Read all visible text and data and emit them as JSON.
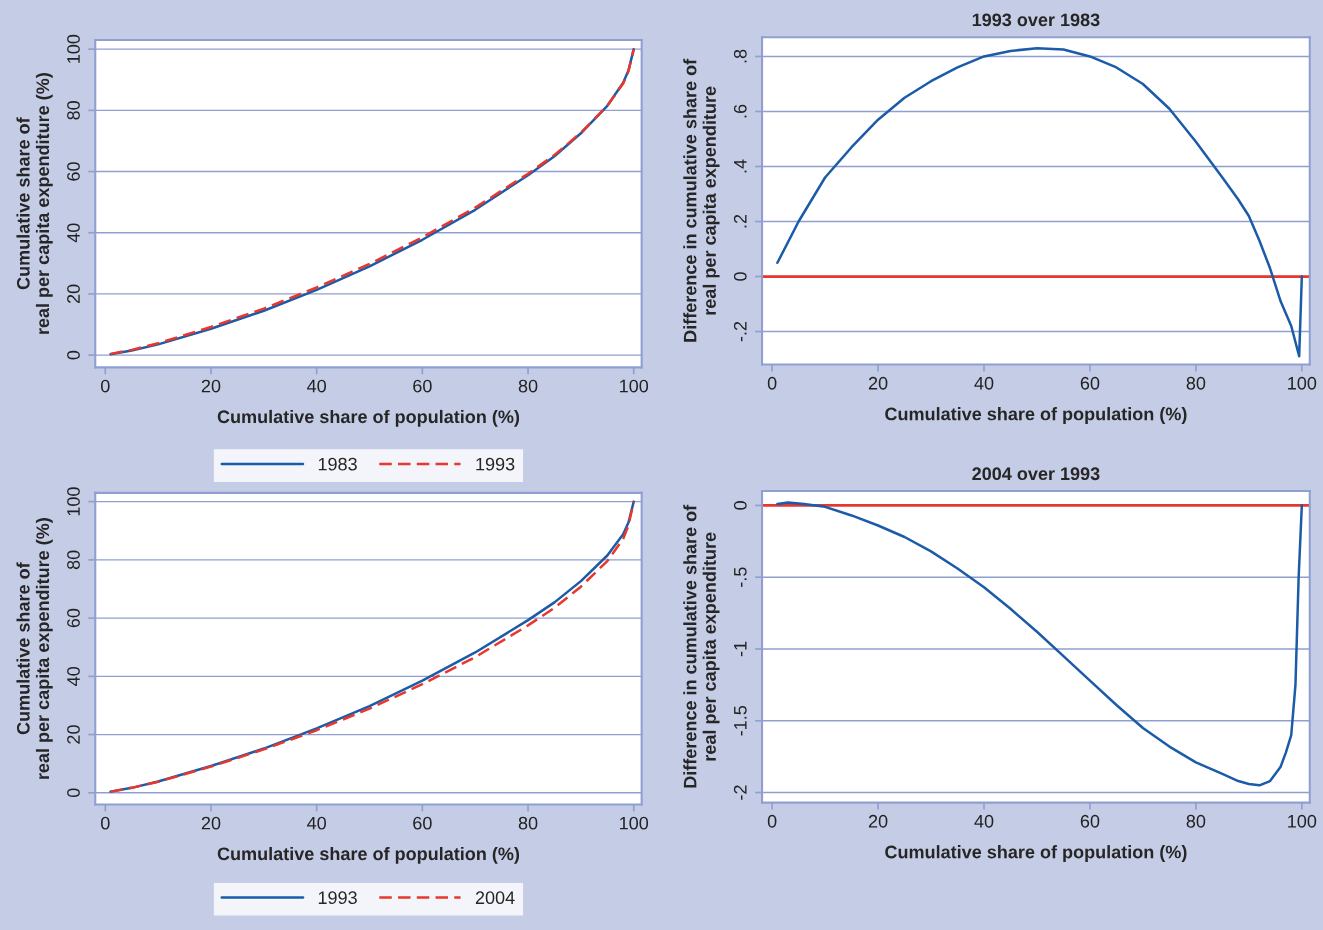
{
  "chart_data": [
    {
      "type": "line",
      "xlabel": "Cumulative share of population (%)",
      "ylabel": "Cumulative share of\nreal per capita expenditure (%)",
      "xlim": [
        -1.9,
        101.5
      ],
      "ylim": [
        -4,
        103
      ],
      "xticks": [
        0,
        20,
        40,
        60,
        80,
        100
      ],
      "yticks": [
        0,
        20,
        40,
        60,
        80,
        100
      ],
      "grid": "y",
      "legend": "bottom",
      "series": [
        {
          "name": "1983",
          "color": "#1b5ba8",
          "line_style": "solid",
          "x": [
            1,
            5,
            10,
            20,
            30,
            40,
            50,
            60,
            70,
            80,
            85,
            90,
            95,
            98,
            99,
            100
          ],
          "values": [
            0.3,
            1.5,
            3.5,
            8.6,
            14.5,
            21.3,
            29,
            37.7,
            47.5,
            58.8,
            65,
            72.5,
            81.5,
            89,
            93,
            100
          ]
        },
        {
          "name": "1993",
          "color": "#e8372c",
          "line_style": "dashed",
          "x": [
            1,
            5,
            10,
            20,
            30,
            40,
            50,
            60,
            70,
            80,
            85,
            90,
            95,
            98,
            99,
            100
          ],
          "values": [
            0.4,
            1.7,
            3.9,
            9.2,
            15.2,
            22.1,
            29.8,
            38.5,
            48.2,
            59.3,
            65.4,
            72.7,
            81.5,
            88.8,
            92.8,
            100
          ]
        }
      ]
    },
    {
      "type": "line",
      "title": "1993 over 1983",
      "xlabel": "Cumulative share of population (%)",
      "ylabel": "Difference in cumulative share of\nreal per capita expenditure",
      "xlim": [
        -1.9,
        101.5
      ],
      "ylim": [
        -0.32,
        0.87
      ],
      "xticks": [
        0,
        20,
        40,
        60,
        80,
        100
      ],
      "yticks": [
        {
          "value": -0.2,
          "label": "-.2"
        },
        0,
        {
          "value": 0.2,
          "label": ".2"
        },
        {
          "value": 0.4,
          "label": ".4"
        },
        {
          "value": 0.6,
          "label": ".6"
        },
        {
          "value": 0.8,
          "label": ".8"
        }
      ],
      "grid": "y",
      "ref_lines": [
        {
          "axis": "y",
          "value": 0,
          "color": "#e8372c"
        }
      ],
      "series": [
        {
          "color": "#1b5ba8",
          "line_style": "solid",
          "x": [
            1,
            5,
            10,
            15,
            20,
            25,
            30,
            35,
            40,
            45,
            50,
            55,
            60,
            65,
            70,
            75,
            80,
            85,
            88,
            90,
            92,
            94,
            96,
            98,
            99.5,
            100
          ],
          "values": [
            0.05,
            0.2,
            0.36,
            0.47,
            0.57,
            0.65,
            0.71,
            0.76,
            0.8,
            0.82,
            0.83,
            0.825,
            0.8,
            0.76,
            0.7,
            0.61,
            0.49,
            0.36,
            0.28,
            0.22,
            0.13,
            0.03,
            -0.09,
            -0.18,
            -0.29,
            0
          ]
        }
      ]
    },
    {
      "type": "line",
      "xlabel": "Cumulative share of population (%)",
      "ylabel": "Cumulative share of\nreal per capita expenditure (%)",
      "xlim": [
        -1.9,
        101.5
      ],
      "ylim": [
        -4,
        103
      ],
      "xticks": [
        0,
        20,
        40,
        60,
        80,
        100
      ],
      "yticks": [
        0,
        20,
        40,
        60,
        80,
        100
      ],
      "grid": "y",
      "legend": "bottom",
      "series": [
        {
          "name": "1993",
          "color": "#1b5ba8",
          "line_style": "solid",
          "x": [
            1,
            5,
            10,
            20,
            30,
            40,
            50,
            60,
            70,
            80,
            85,
            90,
            95,
            98,
            99,
            100
          ],
          "values": [
            0.4,
            1.7,
            3.9,
            9.2,
            15.2,
            22.1,
            29.8,
            38.5,
            48.2,
            59.3,
            65.4,
            72.7,
            81.5,
            88.8,
            92.8,
            100
          ]
        },
        {
          "name": "2004",
          "color": "#e8372c",
          "line_style": "dashed",
          "x": [
            1,
            5,
            10,
            20,
            30,
            40,
            50,
            60,
            70,
            80,
            85,
            90,
            95,
            98,
            99,
            100
          ],
          "values": [
            0.4,
            1.7,
            3.8,
            9.0,
            14.9,
            21.5,
            28.9,
            37.3,
            46.6,
            57.5,
            63.5,
            70.8,
            79.6,
            87.2,
            91.8,
            100
          ]
        }
      ]
    },
    {
      "type": "line",
      "title": "2004 over 1993",
      "xlabel": "Cumulative share of population (%)",
      "ylabel": "Difference in cumulative share of\nreal per capita expenditure",
      "xlim": [
        -1.9,
        101.5
      ],
      "ylim": [
        -2.07,
        0.1
      ],
      "xticks": [
        0,
        20,
        40,
        60,
        80,
        100
      ],
      "yticks": [
        -2,
        -1.5,
        -1,
        {
          "value": -0.5,
          "label": "-.5"
        },
        0
      ],
      "grid": "y",
      "ref_lines": [
        {
          "axis": "y",
          "value": 0,
          "color": "#e8372c"
        }
      ],
      "series": [
        {
          "color": "#1b5ba8",
          "line_style": "solid",
          "x": [
            1,
            3,
            6,
            10,
            15,
            20,
            25,
            30,
            35,
            40,
            45,
            50,
            55,
            60,
            65,
            70,
            75,
            80,
            85,
            88,
            90,
            92,
            94,
            96,
            97,
            98,
            98.8,
            99.4,
            100
          ],
          "values": [
            0.01,
            0.02,
            0.01,
            -0.01,
            -0.07,
            -0.14,
            -0.22,
            -0.32,
            -0.44,
            -0.57,
            -0.72,
            -0.88,
            -1.05,
            -1.22,
            -1.39,
            -1.55,
            -1.68,
            -1.79,
            -1.87,
            -1.92,
            -1.94,
            -1.95,
            -1.92,
            -1.82,
            -1.72,
            -1.6,
            -1.25,
            -0.5,
            0
          ]
        }
      ]
    }
  ]
}
